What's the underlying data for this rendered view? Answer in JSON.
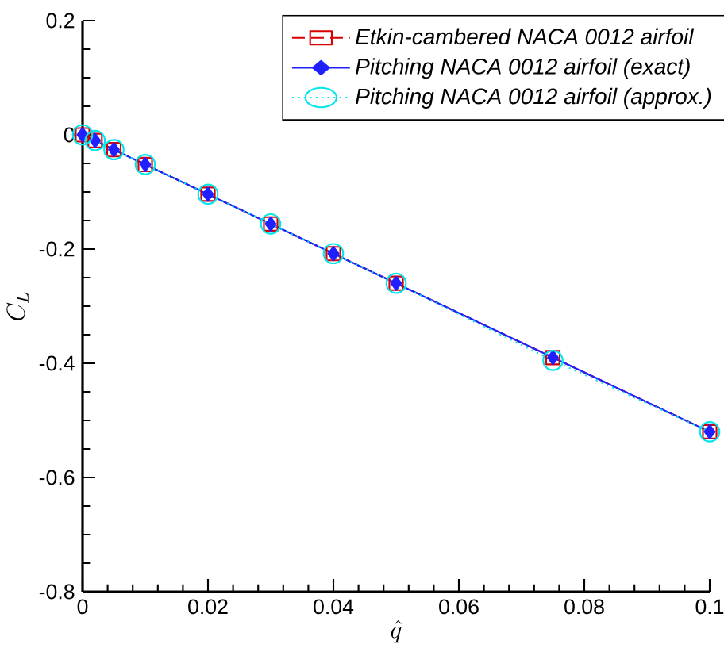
{
  "chart_data": {
    "type": "line",
    "xlabel": "\\hat{q}",
    "ylabel": "C_L",
    "x": [
      0,
      0.002,
      0.005,
      0.01,
      0.02,
      0.03,
      0.04,
      0.05,
      0.075,
      0.1
    ],
    "series": [
      {
        "name": "Etkin-cambered NACA 0012 airfoil",
        "color": "#d80000",
        "marker": "square",
        "line_style": "dashed",
        "values": [
          0,
          -0.01,
          -0.026,
          -0.052,
          -0.104,
          -0.156,
          -0.208,
          -0.26,
          -0.39,
          -0.52
        ]
      },
      {
        "name": "Pitching NACA 0012 airfoil (exact)",
        "color": "#2020ff",
        "marker": "diamond",
        "line_style": "solid",
        "values": [
          0,
          -0.01,
          -0.026,
          -0.052,
          -0.104,
          -0.156,
          -0.208,
          -0.26,
          -0.39,
          -0.52
        ]
      },
      {
        "name": "Pitching NACA 0012 airfoil (approx.)",
        "color": "#00e5ee",
        "marker": "circle",
        "line_style": "dotted",
        "values": [
          0,
          -0.01,
          -0.026,
          -0.052,
          -0.104,
          -0.156,
          -0.208,
          -0.26,
          -0.395,
          -0.52
        ]
      }
    ],
    "xlim": [
      0,
      0.1
    ],
    "xticks": [
      0,
      0.02,
      0.04,
      0.06,
      0.08,
      0.1
    ],
    "ylim": [
      -0.8,
      0.2
    ],
    "yticks": [
      -0.8,
      -0.6,
      -0.4,
      -0.2,
      0,
      0.2
    ],
    "grid": false,
    "legend": "top right"
  }
}
